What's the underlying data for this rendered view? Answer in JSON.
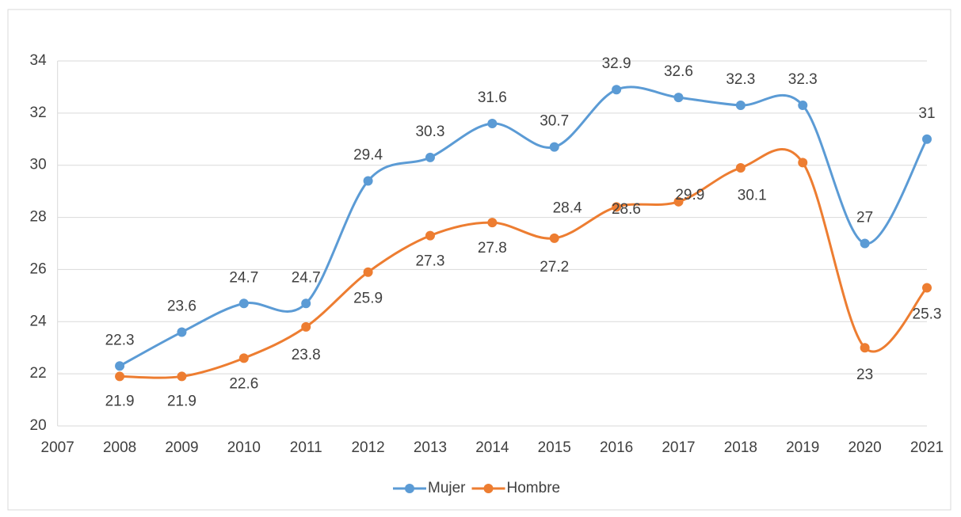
{
  "chart_data": {
    "type": "line",
    "x": [
      2008,
      2009,
      2010,
      2011,
      2012,
      2013,
      2014,
      2015,
      2016,
      2017,
      2018,
      2019,
      2020,
      2021
    ],
    "series": [
      {
        "name": "Mujer",
        "color": "#5b9bd5",
        "values": [
          22.3,
          23.6,
          24.7,
          24.7,
          29.4,
          30.3,
          31.6,
          30.7,
          32.9,
          32.6,
          32.3,
          32.3,
          27,
          31
        ]
      },
      {
        "name": "Hombre",
        "color": "#ed7d31",
        "values": [
          21.9,
          21.9,
          22.6,
          23.8,
          25.9,
          27.3,
          27.8,
          27.2,
          28.4,
          28.6,
          29.9,
          30.1,
          23,
          25.3
        ]
      }
    ],
    "xlim": [
      2007,
      2021
    ],
    "xticks": [
      2007,
      2008,
      2009,
      2010,
      2011,
      2012,
      2013,
      2014,
      2015,
      2016,
      2017,
      2018,
      2019,
      2020,
      2021
    ],
    "ylim": [
      20,
      34
    ],
    "yticks": [
      20,
      22,
      24,
      26,
      28,
      30,
      32,
      34
    ],
    "grid": true,
    "smooth": true,
    "legend": "bottom"
  }
}
